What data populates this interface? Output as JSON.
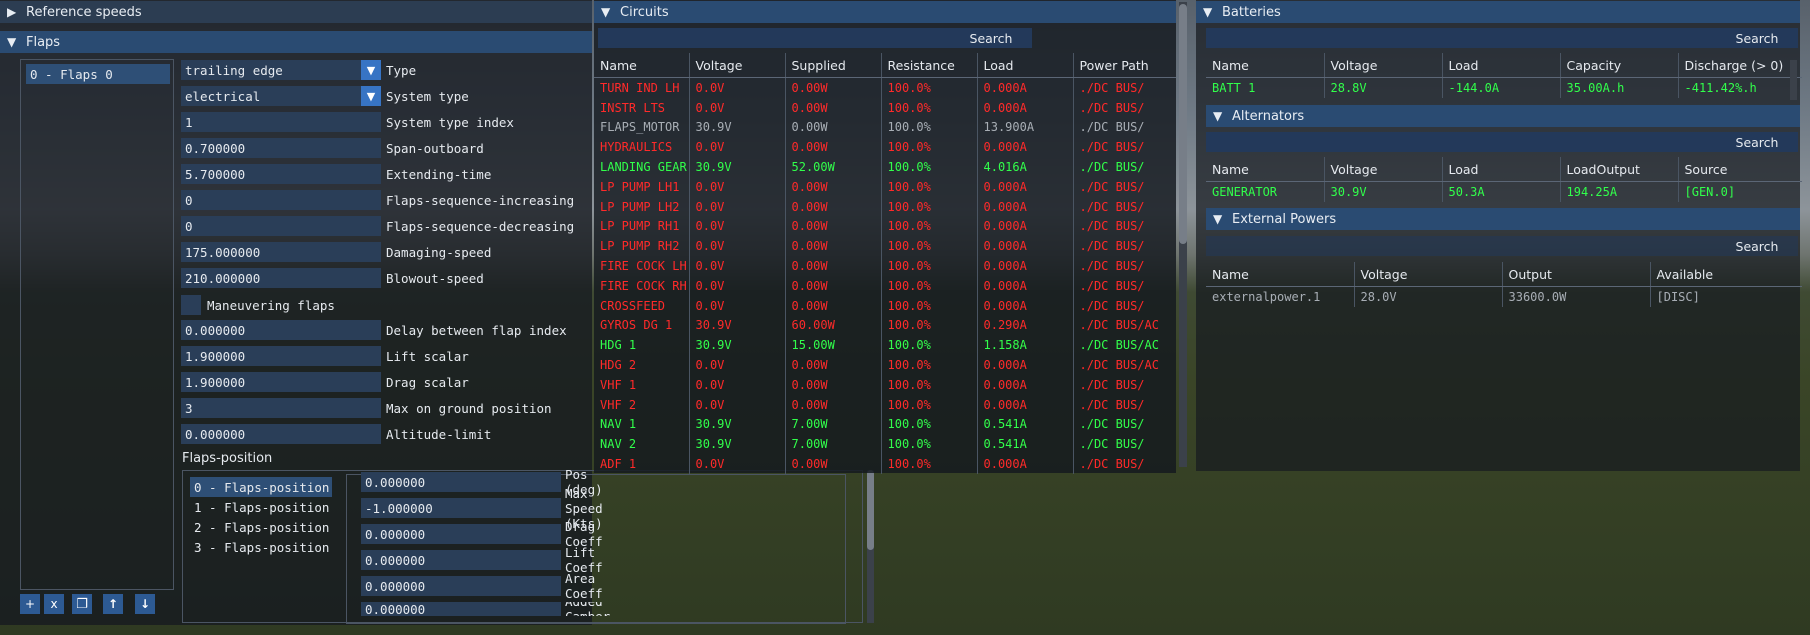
{
  "left": {
    "reference_speeds_title": "Reference speeds",
    "flaps_title": "Flaps",
    "flaps_list": [
      "0 - Flaps 0"
    ],
    "type_value": "trailing edge",
    "type_label": "Type",
    "system_type_value": "electrical",
    "system_type_label": "System type",
    "fields": [
      {
        "value": "1",
        "label": "System type index"
      },
      {
        "value": "0.700000",
        "label": "Span-outboard"
      },
      {
        "value": "5.700000",
        "label": "Extending-time"
      },
      {
        "value": "0",
        "label": "Flaps-sequence-increasing"
      },
      {
        "value": "0",
        "label": "Flaps-sequence-decreasing"
      },
      {
        "value": "175.000000",
        "label": "Damaging-speed"
      },
      {
        "value": "210.000000",
        "label": "Blowout-speed"
      }
    ],
    "maneuvering_label": "Maneuvering flaps",
    "fields2": [
      {
        "value": "0.000000",
        "label": "Delay between flap index"
      },
      {
        "value": "1.900000",
        "label": "Lift scalar"
      },
      {
        "value": "1.900000",
        "label": "Drag scalar"
      },
      {
        "value": "3",
        "label": "Max on ground position"
      },
      {
        "value": "0.000000",
        "label": "Altitude-limit"
      }
    ],
    "flaps_position_title": "Flaps-position",
    "positions": [
      "0 - Flaps-position",
      "1 - Flaps-position",
      "2 - Flaps-position",
      "3 - Flaps-position"
    ],
    "pos_fields": [
      {
        "value": "0.000000",
        "label": "Pos (deg)"
      },
      {
        "value": "-1.000000",
        "label": "Max Speed (Kts)"
      },
      {
        "value": "0.000000",
        "label": "Drag Coeff"
      },
      {
        "value": "0.000000",
        "label": "Lift Coeff"
      },
      {
        "value": "0.000000",
        "label": "Area Coeff"
      },
      {
        "value": "0.000000",
        "label": "Added Camber"
      }
    ],
    "toolbar": {
      "add": "+",
      "remove": "x"
    }
  },
  "circuits": {
    "title": "Circuits",
    "search": "Search",
    "columns": [
      "Name",
      "Voltage",
      "Supplied",
      "Resistance",
      "Load",
      "Power Path"
    ],
    "rows": [
      {
        "c": "red",
        "v": [
          "TURN IND LH",
          "0.0V",
          "0.00W",
          "100.0%",
          "0.000A",
          "./DC BUS/"
        ]
      },
      {
        "c": "red",
        "v": [
          "INSTR LTS",
          "0.0V",
          "0.00W",
          "100.0%",
          "0.000A",
          "./DC BUS/"
        ]
      },
      {
        "c": "gray",
        "v": [
          "FLAPS_MOTOR",
          "30.9V",
          "0.00W",
          "100.0%",
          "13.900A",
          "./DC BUS/"
        ]
      },
      {
        "c": "red",
        "v": [
          "HYDRAULICS",
          "0.0V",
          "0.00W",
          "100.0%",
          "0.000A",
          "./DC BUS/"
        ]
      },
      {
        "c": "green",
        "v": [
          "LANDING GEAR",
          "30.9V",
          "52.00W",
          "100.0%",
          "4.016A",
          "./DC BUS/"
        ]
      },
      {
        "c": "red",
        "v": [
          "LP PUMP LH1",
          "0.0V",
          "0.00W",
          "100.0%",
          "0.000A",
          "./DC BUS/"
        ]
      },
      {
        "c": "red",
        "v": [
          "LP PUMP LH2",
          "0.0V",
          "0.00W",
          "100.0%",
          "0.000A",
          "./DC BUS/"
        ]
      },
      {
        "c": "red",
        "v": [
          "LP PUMP RH1",
          "0.0V",
          "0.00W",
          "100.0%",
          "0.000A",
          "./DC BUS/"
        ]
      },
      {
        "c": "red",
        "v": [
          "LP PUMP RH2",
          "0.0V",
          "0.00W",
          "100.0%",
          "0.000A",
          "./DC BUS/"
        ]
      },
      {
        "c": "red",
        "v": [
          "FIRE COCK LH",
          "0.0V",
          "0.00W",
          "100.0%",
          "0.000A",
          "./DC BUS/"
        ]
      },
      {
        "c": "red",
        "v": [
          "FIRE COCK RH",
          "0.0V",
          "0.00W",
          "100.0%",
          "0.000A",
          "./DC BUS/"
        ]
      },
      {
        "c": "red",
        "v": [
          "CROSSFEED",
          "0.0V",
          "0.00W",
          "100.0%",
          "0.000A",
          "./DC BUS/"
        ]
      },
      {
        "c": "red",
        "v": [
          "GYROS DG 1",
          "30.9V",
          "60.00W",
          "100.0%",
          "0.290A",
          "./DC BUS/AC"
        ]
      },
      {
        "c": "green",
        "v": [
          "HDG 1",
          "30.9V",
          "15.00W",
          "100.0%",
          "1.158A",
          "./DC BUS/AC"
        ]
      },
      {
        "c": "red",
        "v": [
          "HDG 2",
          "0.0V",
          "0.00W",
          "100.0%",
          "0.000A",
          "./DC BUS/AC"
        ]
      },
      {
        "c": "red",
        "v": [
          "VHF 1",
          "0.0V",
          "0.00W",
          "100.0%",
          "0.000A",
          "./DC BUS/"
        ]
      },
      {
        "c": "red",
        "v": [
          "VHF 2",
          "0.0V",
          "0.00W",
          "100.0%",
          "0.000A",
          "./DC BUS/"
        ]
      },
      {
        "c": "green",
        "v": [
          "NAV 1",
          "30.9V",
          "7.00W",
          "100.0%",
          "0.541A",
          "./DC BUS/"
        ]
      },
      {
        "c": "green",
        "v": [
          "NAV 2",
          "30.9V",
          "7.00W",
          "100.0%",
          "0.541A",
          "./DC BUS/"
        ]
      },
      {
        "c": "red",
        "v": [
          "ADF 1",
          "0.0V",
          "0.00W",
          "100.0%",
          "0.000A",
          "./DC BUS/"
        ]
      }
    ]
  },
  "batteries": {
    "title": "Batteries",
    "search": "Search",
    "columns": [
      "Name",
      "Voltage",
      "Load",
      "Capacity",
      "Discharge (> 0)"
    ],
    "rows": [
      {
        "c": "green",
        "v": [
          "BATT 1",
          "28.8V",
          "-144.0A",
          "35.00A.h",
          "-411.42%.h"
        ]
      }
    ]
  },
  "alternators": {
    "title": "Alternators",
    "search": "Search",
    "columns": [
      "Name",
      "Voltage",
      "Load",
      "LoadOutput",
      "Source"
    ],
    "rows": [
      {
        "c": "green",
        "v": [
          "GENERATOR",
          "30.9V",
          "50.3A",
          "194.25A",
          "[GEN.0]"
        ]
      }
    ]
  },
  "external": {
    "title": "External Powers",
    "search": "Search",
    "columns": [
      "Name",
      "Voltage",
      "Output",
      "Available"
    ],
    "rows": [
      {
        "c": "gray",
        "v": [
          "externalpower.1",
          "28.0V",
          "33600.0W",
          "[DISC]"
        ]
      }
    ]
  }
}
